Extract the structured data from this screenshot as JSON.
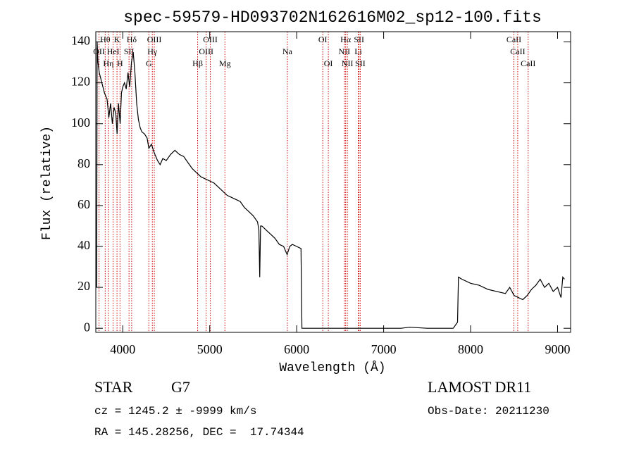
{
  "chart_data": {
    "type": "line",
    "title": "spec-59579-HD093702N162616M02_sp12-100.fits",
    "xlabel": "Wavelength (Å)",
    "ylabel": "Flux (relative)",
    "xlim": [
      3690,
      9150
    ],
    "ylim": [
      -2,
      145
    ],
    "xticks": [
      4000,
      5000,
      6000,
      7000,
      8000,
      9000
    ],
    "yticks": [
      0,
      20,
      40,
      60,
      80,
      100,
      120,
      140
    ],
    "color": "#000000",
    "line_color": "#cc0000",
    "x": [
      3700,
      3705,
      3715,
      3730,
      3760,
      3790,
      3820,
      3840,
      3860,
      3880,
      3900,
      3920,
      3935,
      3950,
      3970,
      3985,
      4000,
      4020,
      4040,
      4060,
      4080,
      4100,
      4120,
      4140,
      4160,
      4180,
      4200,
      4220,
      4250,
      4280,
      4300,
      4330,
      4360,
      4400,
      4430,
      4460,
      4500,
      4550,
      4600,
      4650,
      4700,
      4750,
      4800,
      4850,
      4900,
      4950,
      5000,
      5050,
      5100,
      5150,
      5200,
      5250,
      5300,
      5350,
      5400,
      5450,
      5500,
      5550,
      5565,
      5575,
      5585,
      5600,
      5650,
      5700,
      5750,
      5800,
      5850,
      5890,
      5920,
      5950,
      6000,
      6050,
      6060,
      6200,
      7000,
      7200,
      7300,
      7500,
      7800,
      7850,
      7860,
      7900,
      8000,
      8100,
      8200,
      8300,
      8400,
      8450,
      8500,
      8600,
      8650,
      8700,
      8750,
      8800,
      8850,
      8900,
      8950,
      9000,
      9040,
      9060,
      9080
    ],
    "values": [
      20,
      140,
      130,
      125,
      120,
      115,
      112,
      103,
      110,
      100,
      108,
      105,
      95,
      110,
      100,
      115,
      118,
      120,
      117,
      125,
      118,
      130,
      135,
      125,
      110,
      102,
      98,
      96,
      95,
      93,
      88,
      90,
      86,
      82,
      80,
      83,
      82,
      85,
      87,
      85,
      84,
      81,
      78,
      76,
      74,
      73,
      72,
      71,
      69,
      67,
      65,
      64,
      63,
      62,
      59,
      57,
      55,
      52,
      48,
      25,
      50,
      50,
      48,
      46,
      44,
      41,
      40,
      36,
      40,
      41,
      40,
      39,
      0,
      0,
      0,
      0,
      0.5,
      0,
      0,
      3,
      25,
      24,
      22,
      21,
      19,
      18,
      17,
      20,
      16,
      14,
      16,
      19,
      21,
      24,
      20,
      22,
      18,
      20,
      15,
      25,
      24
    ],
    "lines": [
      {
        "name": "OII",
        "x": 3727,
        "row": 1
      },
      {
        "name": "Hθ",
        "x": 3798,
        "row": 0
      },
      {
        "name": "Hη",
        "x": 3835,
        "row": 2
      },
      {
        "name": "HeI",
        "x": 3889,
        "row": 1
      },
      {
        "name": "K",
        "x": 3934,
        "row": 0
      },
      {
        "name": "H",
        "x": 3968,
        "row": 2
      },
      {
        "name": "SII",
        "x": 4072,
        "row": 1
      },
      {
        "name": "Hδ",
        "x": 4102,
        "row": 0
      },
      {
        "name": "G",
        "x": 4300,
        "row": 2
      },
      {
        "name": "Hγ",
        "x": 4340,
        "row": 1
      },
      {
        "name": "OIII",
        "x": 4363,
        "row": 0
      },
      {
        "name": "Hβ",
        "x": 4861,
        "row": 2
      },
      {
        "name": "OIII",
        "x": 4959,
        "row": 1
      },
      {
        "name": "OIII",
        "x": 5007,
        "row": 0
      },
      {
        "name": "Mg",
        "x": 5175,
        "row": 2
      },
      {
        "name": "Na",
        "x": 5893,
        "row": 1
      },
      {
        "name": "OI",
        "x": 6300,
        "row": 0
      },
      {
        "name": "OI",
        "x": 6364,
        "row": 2
      },
      {
        "name": "NII",
        "x": 6548,
        "row": 1
      },
      {
        "name": "Hα",
        "x": 6563,
        "row": 0
      },
      {
        "name": "NII",
        "x": 6583,
        "row": 2
      },
      {
        "name": "Li",
        "x": 6708,
        "row": 1
      },
      {
        "name": "SII",
        "x": 6717,
        "row": 0
      },
      {
        "name": "SII",
        "x": 6731,
        "row": 2
      },
      {
        "name": "CaII",
        "x": 8498,
        "row": 0
      },
      {
        "name": "CaII",
        "x": 8542,
        "row": 1
      },
      {
        "name": "CaII",
        "x": 8662,
        "row": 2
      }
    ]
  },
  "footer": {
    "object": "STAR",
    "subclass": "G7",
    "survey": "LAMOST DR11",
    "cz": "cz = 1245.2 ± -9999 km/s",
    "obs_date": "Obs-Date: 20211230",
    "coords": "RA = 145.28256, DEC =  17.74344"
  }
}
